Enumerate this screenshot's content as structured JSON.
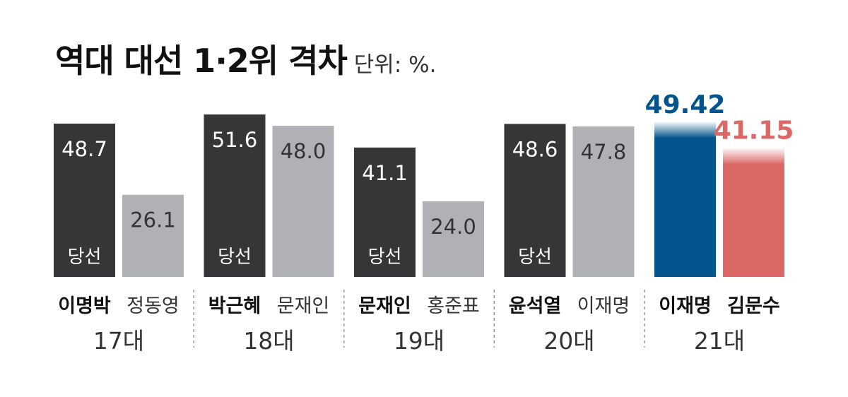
{
  "title": "역대 대선 1·2위 격차",
  "unit": "단위: %.",
  "chart_data": {
    "type": "bar",
    "title": "역대 대선 1·2위 격차",
    "unit": "%",
    "winner_label": "당선",
    "ylim": [
      0,
      55
    ],
    "grid": false,
    "elections": [
      {
        "label": "17대",
        "winner": {
          "name": "이명박",
          "value": 48.7,
          "value_text": "48.7"
        },
        "runner_up": {
          "name": "정동영",
          "value": 26.1,
          "value_text": "26.1"
        }
      },
      {
        "label": "18대",
        "winner": {
          "name": "박근혜",
          "value": 51.6,
          "value_text": "51.6"
        },
        "runner_up": {
          "name": "문재인",
          "value": 48.0,
          "value_text": "48.0"
        }
      },
      {
        "label": "19대",
        "winner": {
          "name": "문재인",
          "value": 41.1,
          "value_text": "41.1"
        },
        "runner_up": {
          "name": "홍준표",
          "value": 24.0,
          "value_text": "24.0"
        }
      },
      {
        "label": "20대",
        "winner": {
          "name": "윤석열",
          "value": 48.6,
          "value_text": "48.6"
        },
        "runner_up": {
          "name": "이재명",
          "value": 47.8,
          "value_text": "47.8"
        }
      },
      {
        "label": "21대",
        "winner": {
          "name": "이재명",
          "value": 49.42,
          "value_text": "49.42"
        },
        "runner_up": {
          "name": "김문수",
          "value": 41.15,
          "value_text": "41.15"
        }
      }
    ]
  },
  "colors": {
    "winner": "#363538",
    "runner_up": "#b0b1b5",
    "latest_winner": "#03538c",
    "latest_runner_up": "#dc6866",
    "separator": "#999999",
    "text_dark": "#111111",
    "text_light": "#333333",
    "text_on_dark": "#ffffff"
  }
}
